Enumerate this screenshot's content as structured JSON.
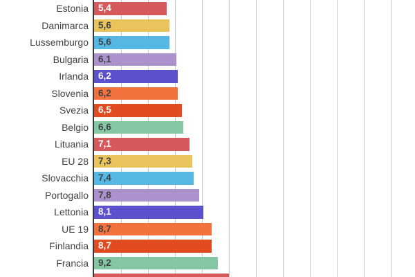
{
  "chart_data": {
    "type": "bar",
    "orientation": "horizontal",
    "title": "",
    "xlabel": "",
    "ylabel": "",
    "xlim": [
      0,
      23.8
    ],
    "gridline_step": 2,
    "grid": true,
    "legend_position": "none",
    "decimal_format": "comma",
    "note": "chart cropped at top and bottom edges; last bar partially visible with no readable label",
    "rows": [
      {
        "label": "Estonia",
        "value": 5.4,
        "value_label": "5,4",
        "color": "#d6595c",
        "value_text_color": "#ffffff",
        "partial": false
      },
      {
        "label": "Danimarca",
        "value": 5.6,
        "value_label": "5,6",
        "color": "#e9c45c",
        "value_text_color": "#3f4245",
        "partial": false
      },
      {
        "label": "Lussemburgo",
        "value": 5.6,
        "value_label": "5,6",
        "color": "#55b7e3",
        "value_text_color": "#3f4245",
        "partial": false
      },
      {
        "label": "Bulgaria",
        "value": 6.1,
        "value_label": "6,1",
        "color": "#ac92cc",
        "value_text_color": "#3f4245",
        "partial": false
      },
      {
        "label": "Irlanda",
        "value": 6.2,
        "value_label": "6,2",
        "color": "#5d50cc",
        "value_text_color": "#ffffff",
        "partial": false
      },
      {
        "label": "Slovenia",
        "value": 6.2,
        "value_label": "6,2",
        "color": "#f3713c",
        "value_text_color": "#3f4245",
        "partial": false
      },
      {
        "label": "Svezia",
        "value": 6.5,
        "value_label": "6,5",
        "color": "#e04b20",
        "value_text_color": "#ffffff",
        "partial": false
      },
      {
        "label": "Belgio",
        "value": 6.6,
        "value_label": "6,6",
        "color": "#84c7a2",
        "value_text_color": "#3f4245",
        "partial": false
      },
      {
        "label": "Lituania",
        "value": 7.1,
        "value_label": "7,1",
        "color": "#d6595c",
        "value_text_color": "#ffffff",
        "partial": false
      },
      {
        "label": "EU 28",
        "value": 7.3,
        "value_label": "7,3",
        "color": "#e9c45c",
        "value_text_color": "#3f4245",
        "partial": false
      },
      {
        "label": "Slovacchia",
        "value": 7.4,
        "value_label": "7,4",
        "color": "#55b7e3",
        "value_text_color": "#3f4245",
        "partial": false
      },
      {
        "label": "Portogallo",
        "value": 7.8,
        "value_label": "7,8",
        "color": "#ac92cc",
        "value_text_color": "#3f4245",
        "partial": false
      },
      {
        "label": "Lettonia",
        "value": 8.1,
        "value_label": "8,1",
        "color": "#5d50cc",
        "value_text_color": "#ffffff",
        "partial": false
      },
      {
        "label": "UE 19",
        "value": 8.7,
        "value_label": "8,7",
        "color": "#f3713c",
        "value_text_color": "#3f4245",
        "partial": false
      },
      {
        "label": "Finlandia",
        "value": 8.7,
        "value_label": "8,7",
        "color": "#e04b20",
        "value_text_color": "#ffffff",
        "partial": false
      },
      {
        "label": "Francia",
        "value": 9.2,
        "value_label": "9,2",
        "color": "#84c7a2",
        "value_text_color": "#3f4245",
        "partial": false
      },
      {
        "label": "",
        "value": 10.0,
        "value_label": "",
        "color": "#d6595c",
        "value_text_color": "#ffffff",
        "partial": true
      }
    ]
  },
  "colors": {
    "background": "#ffffff",
    "axis_line": "#33373c",
    "gridline": "#c9c9c9",
    "label_text": "#3f4245"
  }
}
